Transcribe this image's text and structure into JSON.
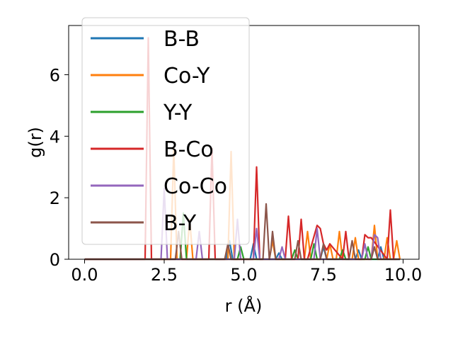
{
  "chart_data": {
    "type": "line",
    "xlabel": "r (Å)",
    "ylabel": "g(r)",
    "xlim": [
      -0.5,
      10.5
    ],
    "ylim": [
      0,
      7.6
    ],
    "xticks": [
      {
        "value": 0.0,
        "label": "0.0"
      },
      {
        "value": 2.5,
        "label": "2.5"
      },
      {
        "value": 5.0,
        "label": "5.0"
      },
      {
        "value": 7.5,
        "label": "7.5"
      },
      {
        "value": 10.0,
        "label": "10.0"
      }
    ],
    "yticks": [
      {
        "value": 0,
        "label": "0"
      },
      {
        "value": 2,
        "label": "2"
      },
      {
        "value": 4,
        "label": "4"
      },
      {
        "value": 6,
        "label": "6"
      }
    ],
    "grid": false,
    "legend_position": "top-left",
    "series": [
      {
        "name": "B-B",
        "color": "#1f77b4",
        "x": [
          0,
          4.45,
          4.55,
          4.65,
          5.2,
          5.3,
          5.4,
          6.0,
          6.1,
          6.2,
          7.4,
          7.5,
          7.6,
          8.5,
          8.6,
          8.7,
          9.2,
          9.3,
          9.4,
          9.9
        ],
        "y": [
          0,
          0,
          0.6,
          0,
          0,
          0.5,
          0,
          0,
          0.2,
          0,
          0,
          0.4,
          0,
          0,
          0.3,
          0,
          0,
          0.4,
          0,
          0
        ]
      },
      {
        "name": "Co-Y",
        "color": "#ff7f0e",
        "x": [
          0,
          2.7,
          2.8,
          2.9,
          3.2,
          3.3,
          3.4,
          4.5,
          4.6,
          4.7,
          5.8,
          5.9,
          6.0,
          6.9,
          7.0,
          7.1,
          7.6,
          7.7,
          7.8,
          7.9,
          8.0,
          8.1,
          8.4,
          8.5,
          8.6,
          9.0,
          9.1,
          9.2,
          9.4,
          9.5,
          9.6,
          9.7,
          9.8,
          9.9
        ],
        "y": [
          0,
          0,
          3.6,
          0,
          0,
          1.3,
          0,
          0,
          3.5,
          0,
          0,
          0.6,
          0,
          0,
          0.9,
          0,
          0,
          0.5,
          0,
          0,
          0.9,
          0,
          0,
          0.7,
          0,
          0,
          1.1,
          0,
          0,
          0.7,
          0,
          0,
          0.6,
          0
        ]
      },
      {
        "name": "Y-Y",
        "color": "#2ca02c",
        "x": [
          0,
          3.0,
          3.1,
          3.2,
          4.8,
          4.9,
          5.0,
          6.5,
          6.6,
          6.7,
          7.1,
          7.2,
          7.3,
          8.0,
          8.1,
          8.2,
          8.8,
          8.9,
          9.0,
          9.9
        ],
        "y": [
          0,
          0,
          1.5,
          0,
          0,
          0.4,
          0,
          0,
          0.3,
          0,
          0,
          0.5,
          0,
          0,
          0.3,
          0,
          0,
          0.4,
          0,
          0
        ]
      },
      {
        "name": "B-Co",
        "color": "#d62728",
        "x": [
          0,
          1.9,
          2.0,
          2.1,
          3.9,
          4.0,
          4.1,
          5.3,
          5.4,
          5.5,
          6.3,
          6.4,
          6.5,
          6.7,
          6.8,
          6.9,
          7.0,
          7.3,
          7.4,
          7.5,
          7.6,
          7.7,
          8.1,
          8.2,
          8.3,
          8.7,
          8.8,
          8.9,
          9.0,
          9.5,
          9.6,
          9.7,
          9.8
        ],
        "y": [
          0,
          0,
          7.2,
          0,
          0,
          3.6,
          0,
          0,
          3.0,
          0,
          0,
          1.4,
          0,
          0,
          1.3,
          0,
          0,
          1.1,
          1.0,
          0.5,
          0.3,
          0.5,
          0,
          0.9,
          0,
          0,
          0.8,
          0.7,
          0.7,
          0,
          1.6,
          0,
          0
        ]
      },
      {
        "name": "Co-Co",
        "color": "#9467bd",
        "x": [
          0,
          2.4,
          2.5,
          2.6,
          3.5,
          3.6,
          3.7,
          4.7,
          4.8,
          4.9,
          5.3,
          5.4,
          5.5,
          6.1,
          6.2,
          6.3,
          7.2,
          7.3,
          7.4,
          8.7,
          8.8,
          8.9,
          9.0,
          9.1,
          9.2,
          9.3,
          9.9
        ],
        "y": [
          0,
          0,
          2.3,
          0,
          0,
          0.9,
          0,
          0,
          1.3,
          0,
          0,
          1.0,
          0,
          0,
          0.4,
          0,
          0,
          1.0,
          0,
          0,
          0.5,
          0,
          0,
          0.8,
          0.7,
          0,
          0
        ]
      },
      {
        "name": "B-Y",
        "color": "#8c564b",
        "x": [
          0,
          2.85,
          2.95,
          3.05,
          4.4,
          4.5,
          4.6,
          5.6,
          5.7,
          5.8,
          5.85,
          5.9,
          6.0,
          6.6,
          6.7,
          6.8,
          7.4,
          7.5,
          7.6,
          8.3,
          8.4,
          8.5,
          9.0,
          9.1,
          9.2,
          9.9
        ],
        "y": [
          0,
          0,
          0.9,
          0,
          0,
          0.5,
          0,
          0,
          1.8,
          0,
          0.3,
          0.9,
          0,
          0,
          0.6,
          0,
          0,
          0.5,
          0,
          0,
          0.6,
          0,
          0,
          0.4,
          0,
          0
        ]
      }
    ]
  }
}
